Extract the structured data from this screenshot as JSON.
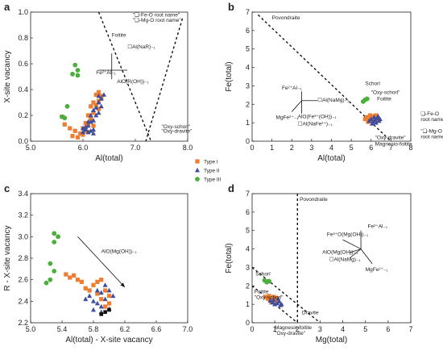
{
  "legend": {
    "entries": [
      {
        "label": "Type I",
        "marker": "square",
        "color": "#ed7d31"
      },
      {
        "label": "Type II",
        "marker": "triangle",
        "color": "#3f4e9a"
      },
      {
        "label": "Type III",
        "marker": "circle",
        "color": "#4caf3c"
      }
    ]
  },
  "chart_data": [
    {
      "panel": "a",
      "type": "scatter",
      "xlabel": "Al(total)",
      "ylabel": "X-site vacancy",
      "xlim": [
        5.0,
        8.0
      ],
      "ylim": [
        0.0,
        1.0
      ],
      "xticks": [
        "5.0",
        "6.0",
        "7.0",
        "8.0"
      ],
      "yticks": [
        "0.0",
        "0.2",
        "0.4",
        "0.6",
        "0.8",
        "1.0"
      ],
      "annotations": [
        {
          "text": "\"❏-Fe-O root name\"",
          "x": 6.95,
          "y": 0.965
        },
        {
          "text": "\"❏-Mg-O root name\"",
          "x": 6.95,
          "y": 0.925
        },
        {
          "text": "Foitite",
          "x": 6.55,
          "y": 0.81
        },
        {
          "text": "☐Al(NaR)₋₁",
          "x": 6.85,
          "y": 0.72
        },
        {
          "text": "Fe²⁺Al₋₁",
          "x": 6.25,
          "y": 0.52
        },
        {
          "text": "AlO(R(OH))₋₁",
          "x": 6.65,
          "y": 0.45
        },
        {
          "text": "\"Oxy-schorl\"",
          "x": 7.5,
          "y": 0.1
        },
        {
          "text": "\"Oxy-dravite\"",
          "x": 7.5,
          "y": 0.065
        }
      ],
      "series": [
        {
          "name": "Type I",
          "points": [
            [
              5.6,
              0.19
            ],
            [
              5.65,
              0.13
            ],
            [
              5.75,
              0.1
            ],
            [
              5.85,
              0.08
            ],
            [
              5.8,
              0.04
            ],
            [
              5.95,
              0.06
            ],
            [
              6.0,
              0.1
            ],
            [
              6.05,
              0.08
            ],
            [
              6.1,
              0.13
            ],
            [
              6.15,
              0.17
            ],
            [
              6.2,
              0.22
            ],
            [
              6.25,
              0.28
            ],
            [
              6.3,
              0.31
            ],
            [
              6.35,
              0.35
            ],
            [
              6.25,
              0.36
            ],
            [
              6.3,
              0.38
            ],
            [
              6.15,
              0.27
            ],
            [
              6.2,
              0.3
            ],
            [
              6.05,
              0.14
            ],
            [
              6.1,
              0.07
            ],
            [
              5.9,
              0.03
            ],
            [
              6.2,
              0.12
            ],
            [
              6.3,
              0.25
            ],
            [
              6.35,
              0.33
            ],
            [
              6.1,
              0.2
            ],
            [
              6.0,
              0.05
            ]
          ]
        },
        {
          "name": "Type II",
          "points": [
            [
              6.0,
              0.1
            ],
            [
              6.05,
              0.11
            ],
            [
              6.1,
              0.12
            ],
            [
              6.15,
              0.15
            ],
            [
              6.2,
              0.16
            ],
            [
              6.1,
              0.07
            ],
            [
              6.15,
              0.08
            ],
            [
              6.2,
              0.09
            ],
            [
              6.25,
              0.2
            ],
            [
              6.3,
              0.22
            ],
            [
              6.35,
              0.27
            ],
            [
              6.25,
              0.26
            ],
            [
              6.3,
              0.3
            ],
            [
              6.35,
              0.33
            ],
            [
              6.15,
              0.2
            ],
            [
              6.05,
              0.09
            ],
            [
              6.2,
              0.24
            ],
            [
              6.4,
              0.36
            ],
            [
              6.3,
              0.35
            ],
            [
              6.1,
              0.15
            ],
            [
              6.2,
              0.06
            ],
            [
              6.0,
              0.07
            ]
          ]
        },
        {
          "name": "Type III",
          "points": [
            [
              5.85,
              0.59
            ],
            [
              5.9,
              0.55
            ],
            [
              5.8,
              0.52
            ],
            [
              5.9,
              0.51
            ],
            [
              5.7,
              0.27
            ],
            [
              5.6,
              0.19
            ],
            [
              5.65,
              0.18
            ]
          ]
        }
      ],
      "lines": [
        {
          "style": "dashed",
          "from": [
            6.3,
            1.0
          ],
          "to": [
            7.3,
            0.0
          ]
        },
        {
          "style": "dashed",
          "from": [
            7.9,
            0.95
          ],
          "to": [
            7.2,
            0.0
          ]
        }
      ]
    },
    {
      "panel": "b",
      "type": "scatter",
      "xlabel": "Al(total)",
      "ylabel": "Fe(total)",
      "xlim": [
        0,
        8
      ],
      "ylim": [
        0,
        7
      ],
      "xticks": [
        "0",
        "1",
        "2",
        "3",
        "4",
        "5",
        "6",
        "7",
        "8"
      ],
      "yticks": [
        "0",
        "1",
        "2",
        "3",
        "4",
        "5",
        "6",
        "7"
      ],
      "annotations": [
        {
          "text": "Povondraite",
          "x": 1.0,
          "y": 6.6
        },
        {
          "text": "Schorl",
          "x": 5.7,
          "y": 3.05
        },
        {
          "text": "\"Oxy-schorl\"",
          "x": 6.0,
          "y": 2.55
        },
        {
          "text": "Foitite",
          "x": 6.3,
          "y": 2.2
        },
        {
          "text": "\"Oxy-dravite\"",
          "x": 6.2,
          "y": 0.12
        },
        {
          "text": "Magnesio-foitite",
          "x": 6.2,
          "y": -0.25
        },
        {
          "text": "❏-Fe-O",
          "x": 8.5,
          "y": 1.4
        },
        {
          "text": "root name\"",
          "x": 8.5,
          "y": 1.1
        },
        {
          "text": "\"❏-Mg-O",
          "x": 8.5,
          "y": 0.45
        },
        {
          "text": "root name\"",
          "x": 8.5,
          "y": 0.15
        },
        {
          "text": "Fe²⁺Al₋₁",
          "x": 1.5,
          "y": 2.8
        },
        {
          "text": "☐Al(NaMg)₋₁",
          "x": 3.3,
          "y": 2.15
        },
        {
          "text": "MgFe²⁺₋₁",
          "x": 1.2,
          "y": 1.2
        },
        {
          "text": "AlO(Fe²⁺(OH))₋₁",
          "x": 2.3,
          "y": 1.25
        },
        {
          "text": "☐Al(NaFe²⁺)₋₁",
          "x": 2.3,
          "y": 0.85
        }
      ],
      "series": [
        {
          "name": "Type I",
          "points": [
            [
              5.7,
              1.2
            ],
            [
              5.8,
              1.3
            ],
            [
              5.9,
              1.15
            ],
            [
              6.0,
              1.25
            ],
            [
              6.1,
              1.35
            ],
            [
              6.2,
              1.2
            ],
            [
              6.3,
              1.3
            ],
            [
              5.85,
              1.05
            ],
            [
              6.05,
              1.1
            ],
            [
              6.25,
              1.4
            ],
            [
              6.35,
              1.15
            ],
            [
              5.95,
              1.4
            ]
          ]
        },
        {
          "name": "Type II",
          "points": [
            [
              5.9,
              1.1
            ],
            [
              6.0,
              1.2
            ],
            [
              6.1,
              1.05
            ],
            [
              6.2,
              1.15
            ],
            [
              6.3,
              1.25
            ],
            [
              6.4,
              1.1
            ],
            [
              6.15,
              1.3
            ],
            [
              6.35,
              1.35
            ],
            [
              6.05,
              0.95
            ],
            [
              6.25,
              1.0
            ],
            [
              6.45,
              1.2
            ]
          ]
        },
        {
          "name": "Type III",
          "points": [
            [
              5.6,
              2.15
            ],
            [
              5.7,
              2.25
            ],
            [
              5.8,
              2.3
            ]
          ]
        }
      ],
      "lines": [
        {
          "style": "dashed",
          "from": [
            0.3,
            6.85
          ],
          "to": [
            7.0,
            0.0
          ]
        }
      ]
    },
    {
      "panel": "c",
      "type": "scatter",
      "xlabel": "Al(total) - X-site vacancy",
      "ylabel": "R - X-site vacancy",
      "xlim": [
        5.0,
        7.0
      ],
      "ylim": [
        2.2,
        3.4
      ],
      "xticks": [
        "5.0",
        "5.4",
        "5.8",
        "6.2",
        "6.6",
        "7.0"
      ],
      "yticks": [
        "2.2",
        "2.4",
        "2.6",
        "2.8",
        "3.0",
        "3.2",
        "3.4"
      ],
      "annotations": [
        {
          "text": "AlO(Mg(OH))₋₁",
          "x": 5.9,
          "y": 2.85
        }
      ],
      "series": [
        {
          "name": "Type I",
          "points": [
            [
              5.45,
              2.65
            ],
            [
              5.5,
              2.62
            ],
            [
              5.55,
              2.64
            ],
            [
              5.6,
              2.6
            ],
            [
              5.65,
              2.58
            ],
            [
              5.7,
              2.52
            ],
            [
              5.75,
              2.5
            ],
            [
              5.8,
              2.55
            ],
            [
              5.85,
              2.47
            ],
            [
              5.9,
              2.42
            ],
            [
              5.95,
              2.5
            ],
            [
              6.0,
              2.45
            ],
            [
              5.85,
              2.58
            ],
            [
              5.9,
              2.6
            ],
            [
              6.0,
              2.38
            ],
            [
              5.95,
              2.35
            ]
          ]
        },
        {
          "name": "Type II",
          "points": [
            [
              5.75,
              2.45
            ],
            [
              5.8,
              2.4
            ],
            [
              5.85,
              2.38
            ],
            [
              5.9,
              2.35
            ],
            [
              5.95,
              2.42
            ],
            [
              6.0,
              2.5
            ],
            [
              6.05,
              2.45
            ],
            [
              5.85,
              2.5
            ],
            [
              5.9,
              2.48
            ],
            [
              5.95,
              2.55
            ],
            [
              5.8,
              2.32
            ],
            [
              5.9,
              2.3
            ],
            [
              6.0,
              2.33
            ],
            [
              5.7,
              2.42
            ]
          ]
        },
        {
          "name": "Type III",
          "points": [
            [
              5.3,
              3.03
            ],
            [
              5.35,
              3.0
            ],
            [
              5.3,
              2.95
            ],
            [
              5.25,
              2.75
            ],
            [
              5.3,
              2.68
            ],
            [
              5.25,
              2.6
            ],
            [
              5.2,
              2.57
            ]
          ]
        }
      ],
      "black_points": [
        [
          5.95,
          2.3
        ],
        [
          6.0,
          2.32
        ],
        [
          5.9,
          2.28
        ]
      ],
      "arrows": [
        {
          "from": [
            5.6,
            3.0
          ],
          "to": [
            6.2,
            2.53
          ]
        }
      ]
    },
    {
      "panel": "d",
      "type": "scatter",
      "xlabel": "Mg(total)",
      "ylabel": "Fe(total)",
      "xlim": [
        0,
        7
      ],
      "ylim": [
        0,
        7
      ],
      "xticks": [
        "0",
        "1",
        "2",
        "3",
        "4",
        "5",
        "6",
        "7"
      ],
      "yticks": [
        "0",
        "1",
        "2",
        "3",
        "4",
        "5",
        "6",
        "7"
      ],
      "annotations": [
        {
          "text": "Povondraite",
          "x": 2.1,
          "y": 6.6
        },
        {
          "text": "Schorl",
          "x": 0.15,
          "y": 2.55
        },
        {
          "text": "Foitite",
          "x": 0.1,
          "y": 1.6
        },
        {
          "text": "\"Oxy-schorl\"",
          "x": 0.1,
          "y": 1.3
        },
        {
          "text": "Dravite",
          "x": 2.2,
          "y": 0.45
        },
        {
          "text": "Magnesio-foitite",
          "x": 1.0,
          "y": -0.35
        },
        {
          "text": "\"Oxy-dravite\"",
          "x": 1.0,
          "y": -0.65
        },
        {
          "text": "Fe²⁺Al₋₁",
          "x": 5.1,
          "y": 5.15
        },
        {
          "text": "Fe³⁺O(Mg(OH))₋₁",
          "x": 3.3,
          "y": 4.7
        },
        {
          "text": "AlO(Mg(OH))₋₁",
          "x": 3.1,
          "y": 3.75
        },
        {
          "text": "☐Al(NaMg)₋₁",
          "x": 3.4,
          "y": 3.35
        },
        {
          "text": "MgFe²⁺₋₁",
          "x": 5.0,
          "y": 2.8
        }
      ],
      "series": [
        {
          "name": "Type I",
          "points": [
            [
              0.6,
              1.4
            ],
            [
              0.7,
              1.3
            ],
            [
              0.8,
              1.25
            ],
            [
              0.9,
              1.3
            ],
            [
              1.0,
              1.2
            ],
            [
              1.1,
              1.15
            ],
            [
              0.75,
              1.45
            ],
            [
              0.95,
              1.4
            ],
            [
              1.05,
              1.35
            ],
            [
              0.85,
              1.1
            ]
          ]
        },
        {
          "name": "Type II",
          "points": [
            [
              0.8,
              1.2
            ],
            [
              0.9,
              1.1
            ],
            [
              1.0,
              1.0
            ],
            [
              1.1,
              1.05
            ],
            [
              1.2,
              1.15
            ],
            [
              1.3,
              1.0
            ],
            [
              0.95,
              1.25
            ],
            [
              1.15,
              1.3
            ],
            [
              1.25,
              0.95
            ]
          ]
        },
        {
          "name": "Type III",
          "points": [
            [
              0.55,
              2.3
            ],
            [
              0.65,
              2.2
            ],
            [
              0.75,
              2.25
            ]
          ]
        }
      ],
      "lines": [
        {
          "style": "dashed",
          "from": [
            0.0,
            3.0
          ],
          "to": [
            3.0,
            0.0
          ]
        },
        {
          "style": "dashed",
          "from": [
            0.0,
            2.0
          ],
          "to": [
            2.0,
            0.0
          ]
        },
        {
          "style": "dashed",
          "from": [
            2.0,
            7.0
          ],
          "to": [
            2.0,
            0.0
          ]
        }
      ]
    }
  ]
}
